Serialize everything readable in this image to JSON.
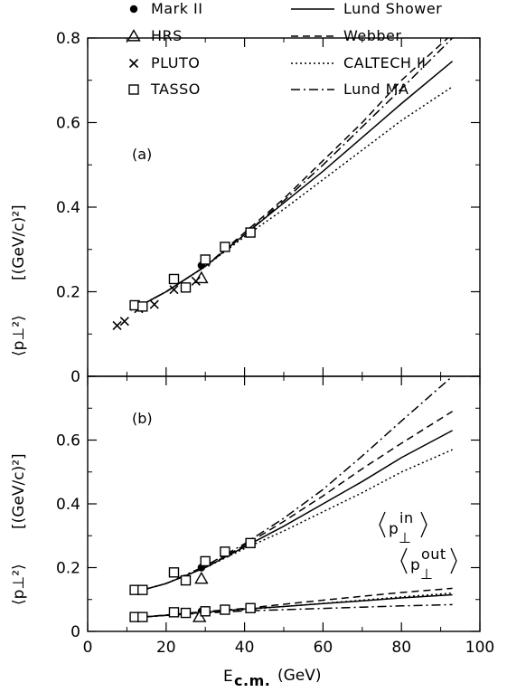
{
  "chart_data": [
    {
      "type": "scatter",
      "panel_label": "(a)",
      "xlabel_main": "E",
      "xlabel_sub": "c.m.",
      "xlabel_unit": "(GeV)",
      "ylabel_quantity": "⟨p⊥²⟩",
      "ylabel_unit": "[(GeV/c)²]",
      "xlim": [
        0,
        100
      ],
      "ylim": [
        0,
        0.8
      ],
      "xticks": [
        "0",
        "20",
        "40",
        "60",
        "80",
        "100"
      ],
      "yticks": [
        "0",
        "0.2",
        "0.4",
        "0.6",
        "0.8"
      ],
      "legend": {
        "markers": [
          {
            "label": "Mark II",
            "marker": "filled-circle"
          },
          {
            "label": "HRS",
            "marker": "triangle"
          },
          {
            "label": "PLUTO",
            "marker": "cross"
          },
          {
            "label": "TASSO",
            "marker": "square"
          }
        ],
        "lines": [
          {
            "label": "Lund Shower",
            "style": "solid"
          },
          {
            "label": "Webber",
            "style": "dashed"
          },
          {
            "label": "CALTECH II",
            "style": "dotted"
          },
          {
            "label": "Lund MA",
            "style": "dash-dot"
          }
        ]
      },
      "data_points": {
        "Mark II": [
          [
            29,
            0.262
          ]
        ],
        "HRS": [
          [
            29,
            0.232
          ]
        ],
        "PLUTO": [
          [
            7.5,
            0.12
          ],
          [
            9.4,
            0.13
          ],
          [
            12,
            0.165
          ],
          [
            13,
            0.16
          ],
          [
            17,
            0.17
          ],
          [
            22,
            0.205
          ],
          [
            27.6,
            0.225
          ],
          [
            30,
            0.27
          ]
        ],
        "TASSO": [
          [
            12,
            0.168
          ],
          [
            14,
            0.165
          ],
          [
            22,
            0.23
          ],
          [
            25,
            0.21
          ],
          [
            30,
            0.276
          ],
          [
            35,
            0.306
          ],
          [
            41.5,
            0.34
          ]
        ]
      },
      "model_curves": {
        "Lund Shower": [
          [
            12,
            0.16
          ],
          [
            20,
            0.2
          ],
          [
            30,
            0.26
          ],
          [
            40,
            0.335
          ],
          [
            50,
            0.41
          ],
          [
            60,
            0.485
          ],
          [
            70,
            0.565
          ],
          [
            80,
            0.645
          ],
          [
            93,
            0.745
          ]
        ],
        "Webber": [
          [
            12,
            0.16
          ],
          [
            20,
            0.2
          ],
          [
            30,
            0.26
          ],
          [
            40,
            0.34
          ],
          [
            50,
            0.42
          ],
          [
            60,
            0.51
          ],
          [
            70,
            0.6
          ],
          [
            80,
            0.7
          ],
          [
            93,
            0.81
          ]
        ],
        "CALTECH II": [
          [
            12,
            0.16
          ],
          [
            20,
            0.2
          ],
          [
            30,
            0.26
          ],
          [
            40,
            0.33
          ],
          [
            50,
            0.395
          ],
          [
            60,
            0.465
          ],
          [
            70,
            0.535
          ],
          [
            80,
            0.605
          ],
          [
            93,
            0.685
          ]
        ],
        "Lund MA": [
          [
            12,
            0.16
          ],
          [
            20,
            0.2
          ],
          [
            30,
            0.26
          ],
          [
            40,
            0.335
          ],
          [
            50,
            0.415
          ],
          [
            60,
            0.5
          ],
          [
            70,
            0.59
          ],
          [
            80,
            0.68
          ],
          [
            93,
            0.8
          ]
        ]
      }
    },
    {
      "type": "scatter",
      "panel_label": "(b)",
      "xlim": [
        0,
        100
      ],
      "ylim": [
        0,
        0.8
      ],
      "xticks": [
        "0",
        "20",
        "40",
        "60",
        "80",
        "100"
      ],
      "yticks": [
        "0",
        "0.2",
        "0.4",
        "0.6"
      ],
      "annotations": {
        "in": {
          "base": "p",
          "sub": "⊥",
          "sup": "in"
        },
        "out": {
          "base": "p",
          "sub": "⊥",
          "sup": "out"
        }
      },
      "data_points_in": {
        "Mark II": [
          [
            29,
            0.2
          ]
        ],
        "HRS": [
          [
            29,
            0.165
          ]
        ],
        "TASSO": [
          [
            12,
            0.13
          ],
          [
            14,
            0.13
          ],
          [
            22,
            0.185
          ],
          [
            25,
            0.16
          ],
          [
            30,
            0.22
          ],
          [
            35,
            0.25
          ],
          [
            41.5,
            0.277
          ]
        ]
      },
      "data_points_out": {
        "Mark II": [
          [
            29,
            0.063
          ]
        ],
        "HRS": [
          [
            28.5,
            0.045
          ]
        ],
        "TASSO": [
          [
            12,
            0.045
          ],
          [
            14,
            0.045
          ],
          [
            22,
            0.06
          ],
          [
            25,
            0.058
          ],
          [
            30,
            0.063
          ],
          [
            35,
            0.068
          ],
          [
            41.5,
            0.073
          ]
        ]
      },
      "model_curves_in": {
        "Lund Shower": [
          [
            14,
            0.13
          ],
          [
            20,
            0.15
          ],
          [
            30,
            0.2
          ],
          [
            40,
            0.265
          ],
          [
            50,
            0.33
          ],
          [
            60,
            0.4
          ],
          [
            70,
            0.47
          ],
          [
            80,
            0.545
          ],
          [
            93,
            0.63
          ]
        ],
        "Webber": [
          [
            14,
            0.13
          ],
          [
            20,
            0.15
          ],
          [
            30,
            0.2
          ],
          [
            40,
            0.27
          ],
          [
            50,
            0.345
          ],
          [
            60,
            0.425
          ],
          [
            70,
            0.51
          ],
          [
            80,
            0.59
          ],
          [
            93,
            0.69
          ]
        ],
        "CALTECH II": [
          [
            14,
            0.13
          ],
          [
            20,
            0.15
          ],
          [
            30,
            0.2
          ],
          [
            40,
            0.26
          ],
          [
            50,
            0.315
          ],
          [
            60,
            0.375
          ],
          [
            70,
            0.435
          ],
          [
            80,
            0.5
          ],
          [
            93,
            0.57
          ]
        ],
        "Lund MA": [
          [
            14,
            0.13
          ],
          [
            20,
            0.15
          ],
          [
            30,
            0.205
          ],
          [
            40,
            0.275
          ],
          [
            50,
            0.355
          ],
          [
            60,
            0.445
          ],
          [
            70,
            0.55
          ],
          [
            80,
            0.66
          ],
          [
            93,
            0.8
          ]
        ]
      },
      "model_curves_out": {
        "Lund Shower": [
          [
            14,
            0.045
          ],
          [
            30,
            0.06
          ],
          [
            40,
            0.07
          ],
          [
            50,
            0.078
          ],
          [
            60,
            0.087
          ],
          [
            70,
            0.096
          ],
          [
            80,
            0.105
          ],
          [
            93,
            0.115
          ]
        ],
        "Webber": [
          [
            14,
            0.045
          ],
          [
            30,
            0.062
          ],
          [
            40,
            0.072
          ],
          [
            50,
            0.085
          ],
          [
            60,
            0.098
          ],
          [
            70,
            0.11
          ],
          [
            80,
            0.122
          ],
          [
            93,
            0.135
          ]
        ],
        "CALTECH II": [
          [
            14,
            0.045
          ],
          [
            30,
            0.06
          ],
          [
            40,
            0.068
          ],
          [
            50,
            0.078
          ],
          [
            60,
            0.088
          ],
          [
            70,
            0.098
          ],
          [
            80,
            0.108
          ],
          [
            93,
            0.12
          ]
        ],
        "Lund MA": [
          [
            14,
            0.045
          ],
          [
            30,
            0.058
          ],
          [
            40,
            0.064
          ],
          [
            50,
            0.068
          ],
          [
            60,
            0.072
          ],
          [
            70,
            0.076
          ],
          [
            80,
            0.08
          ],
          [
            93,
            0.084
          ]
        ]
      }
    }
  ]
}
